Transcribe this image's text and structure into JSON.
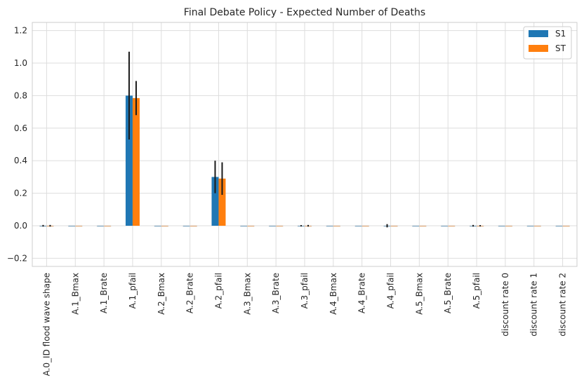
{
  "chart_data": {
    "type": "bar",
    "title": "Final Debate Policy - Expected Number of Deaths",
    "xlabel": "",
    "ylabel": "",
    "ylim": [
      -0.25,
      1.25
    ],
    "yticks": [
      "−0.2",
      "0.0",
      "0.2",
      "0.4",
      "0.6",
      "0.8",
      "1.0",
      "1.2"
    ],
    "grid": true,
    "legend_position": "top-right",
    "categories": [
      "A.0_ID flood wave shape",
      "A.1_Bmax",
      "A.1_Brate",
      "A.1_pfail",
      "A.2_Bmax",
      "A.2_Brate",
      "A.2_pfail",
      "A.3_Bmax",
      "A.3_Brate",
      "A.3_pfail",
      "A.4_Bmax",
      "A.4_Brate",
      "A.4_pfail",
      "A.5_Bmax",
      "A.5_Brate",
      "A.5_pfail",
      "discount rate 0",
      "discount rate 1",
      "discount rate 2"
    ],
    "series": [
      {
        "name": "S1",
        "color": "#1f77b4",
        "values": [
          0.0,
          0.0,
          0.0,
          0.8,
          0.0,
          0.0,
          0.3,
          0.0,
          0.0,
          0.0,
          0.0,
          0.0,
          0.0,
          0.0,
          0.0,
          0.0,
          0.0,
          0.0,
          0.0
        ],
        "errors": [
          0.005,
          0,
          0,
          0.27,
          0,
          0,
          0.1,
          0,
          0,
          0.004,
          0,
          0,
          0.01,
          0,
          0,
          0.005,
          0,
          0,
          0
        ]
      },
      {
        "name": "ST",
        "color": "#ff7f0e",
        "values": [
          0.0,
          0.0,
          0.0,
          0.785,
          0.0,
          0.0,
          0.29,
          0.0,
          0.0,
          0.0,
          0.0,
          0.0,
          0.0,
          0.0,
          0.0,
          0.0,
          0.0,
          0.0,
          0.0
        ],
        "errors": [
          0.005,
          0,
          0,
          0.105,
          0,
          0,
          0.1,
          0,
          0,
          0.005,
          0,
          0,
          0,
          0,
          0,
          0.004,
          0,
          0,
          0
        ]
      }
    ]
  }
}
